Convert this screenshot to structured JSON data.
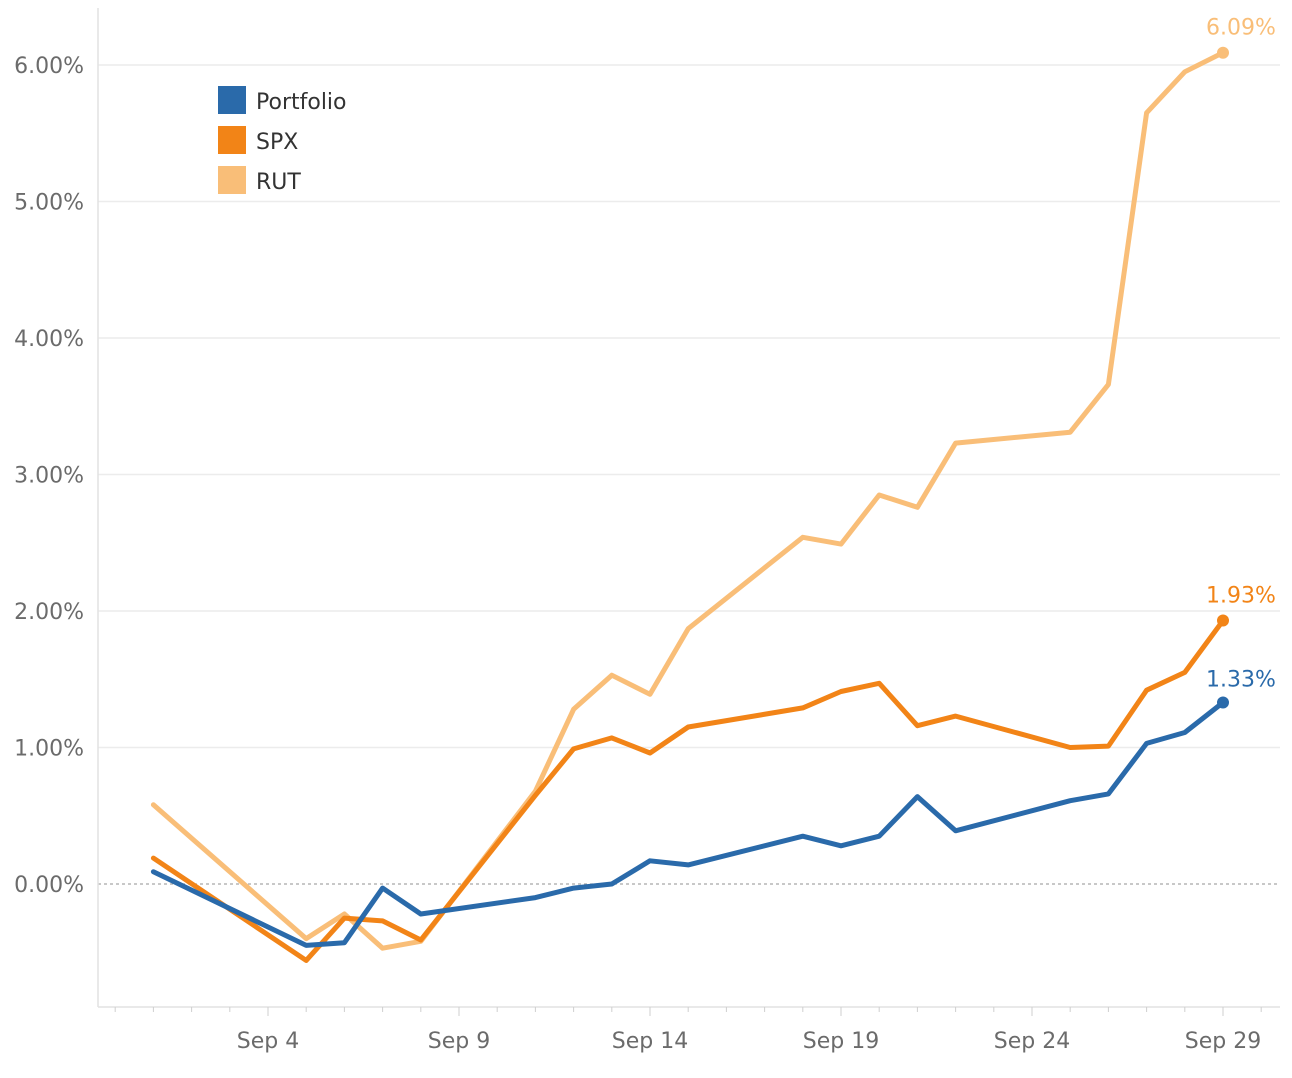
{
  "chart_data": {
    "type": "line",
    "title": "",
    "xlabel": "",
    "ylabel": "",
    "ylim": [
      -0.9,
      6.4
    ],
    "y_ticks": [
      0,
      1,
      2,
      3,
      4,
      5,
      6
    ],
    "y_tick_labels": [
      "0.00%",
      "1.00%",
      "2.00%",
      "3.00%",
      "4.00%",
      "5.00%",
      "6.00%"
    ],
    "x_range": [
      0,
      30.5
    ],
    "x_tick_days": [
      4,
      9,
      14,
      19,
      24,
      29
    ],
    "x_tick_labels": [
      "Sep 4",
      "Sep 9",
      "Sep 14",
      "Sep 19",
      "Sep 24",
      "Sep 29"
    ],
    "grid": true,
    "legend_position": "top-left",
    "series": [
      {
        "name": "RUT",
        "color": "#F9BE78",
        "end_label": "6.09%",
        "points": [
          [
            1,
            0.58
          ],
          [
            5,
            -0.4
          ],
          [
            6,
            -0.22
          ],
          [
            7,
            -0.47
          ],
          [
            8,
            -0.42
          ],
          [
            11,
            0.68
          ],
          [
            12,
            1.28
          ],
          [
            13,
            1.53
          ],
          [
            14,
            1.39
          ],
          [
            15,
            1.87
          ],
          [
            18,
            2.54
          ],
          [
            19,
            2.49
          ],
          [
            20,
            2.85
          ],
          [
            21,
            2.76
          ],
          [
            22,
            3.23
          ],
          [
            25,
            3.31
          ],
          [
            26,
            3.66
          ],
          [
            27,
            5.65
          ],
          [
            28,
            5.95
          ],
          [
            29,
            6.09
          ]
        ]
      },
      {
        "name": "SPX",
        "color": "#F28417",
        "end_label": "1.93%",
        "points": [
          [
            1,
            0.19
          ],
          [
            5,
            -0.56
          ],
          [
            6,
            -0.25
          ],
          [
            7,
            -0.27
          ],
          [
            8,
            -0.41
          ],
          [
            11,
            0.65
          ],
          [
            12,
            0.99
          ],
          [
            13,
            1.07
          ],
          [
            14,
            0.96
          ],
          [
            15,
            1.15
          ],
          [
            18,
            1.29
          ],
          [
            19,
            1.41
          ],
          [
            20,
            1.47
          ],
          [
            21,
            1.16
          ],
          [
            22,
            1.23
          ],
          [
            25,
            1.0
          ],
          [
            26,
            1.01
          ],
          [
            27,
            1.42
          ],
          [
            28,
            1.55
          ],
          [
            29,
            1.93
          ]
        ]
      },
      {
        "name": "Portfolio",
        "color": "#2A6AAA",
        "end_label": "1.33%",
        "points": [
          [
            1,
            0.09
          ],
          [
            5,
            -0.45
          ],
          [
            6,
            -0.43
          ],
          [
            7,
            -0.03
          ],
          [
            8,
            -0.22
          ],
          [
            11,
            -0.1
          ],
          [
            12,
            -0.03
          ],
          [
            13,
            0.0
          ],
          [
            14,
            0.17
          ],
          [
            15,
            0.14
          ],
          [
            18,
            0.35
          ],
          [
            19,
            0.28
          ],
          [
            20,
            0.35
          ],
          [
            21,
            0.64
          ],
          [
            22,
            0.39
          ],
          [
            25,
            0.61
          ],
          [
            26,
            0.66
          ],
          [
            27,
            1.03
          ],
          [
            28,
            1.11
          ],
          [
            29,
            1.33
          ]
        ]
      }
    ]
  },
  "legend": {
    "items": [
      {
        "label": "Portfolio",
        "color": "#2A6AAA"
      },
      {
        "label": "SPX",
        "color": "#F28417"
      },
      {
        "label": "RUT",
        "color": "#F9BE78"
      }
    ]
  }
}
